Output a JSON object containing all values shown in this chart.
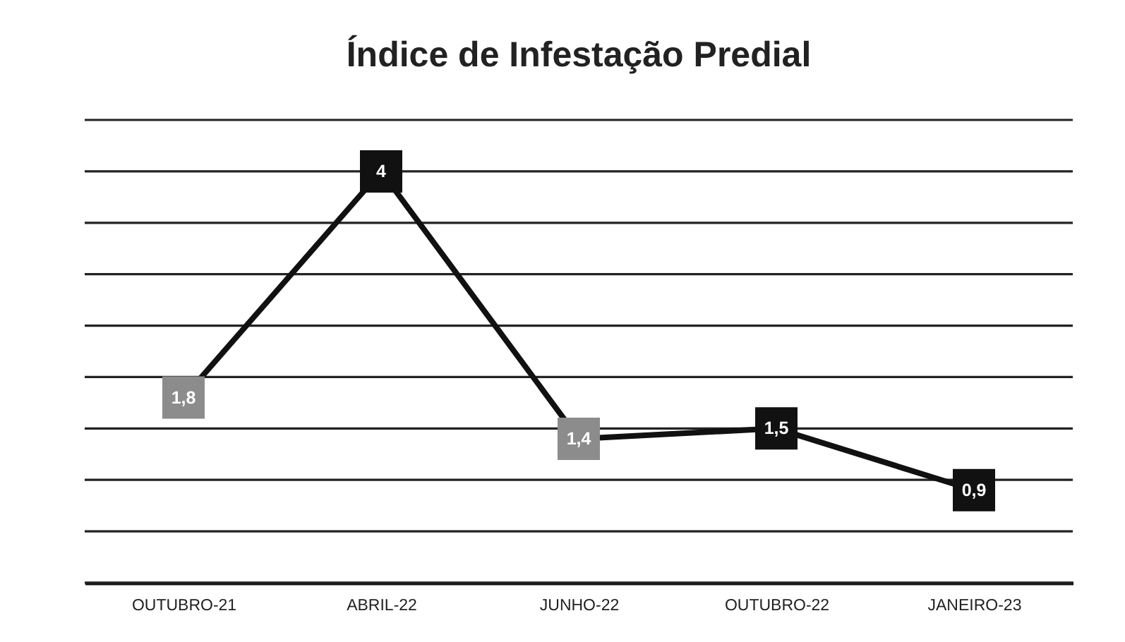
{
  "chart_data": {
    "type": "line",
    "title": "Índice de Infestação Predial",
    "categories": [
      "OUTUBRO-21",
      "ABRIL-22",
      "JUNHO-22",
      "OUTUBRO-22",
      "JANEIRO-23"
    ],
    "series": [
      {
        "color": "#111111",
        "values": [
          1.8,
          4,
          1.4,
          1.5,
          0.9
        ],
        "colors": [
          "#8c8c8c",
          "#111111",
          "#8c8c8c",
          "#111111",
          "#111111"
        ],
        "value_labels": [
          "1,8",
          "4",
          "1,4",
          "1,5",
          "0,9"
        ]
      }
    ],
    "ylim": [
      0,
      4.5
    ],
    "yticks": [
      {
        "value": 0,
        "label": null
      },
      {
        "value": 0.5,
        "label": null
      },
      {
        "value": 1,
        "label": null
      },
      {
        "value": 1.5,
        "label": null
      },
      {
        "value": 2,
        "label": null
      },
      {
        "value": 2.5,
        "label": null
      },
      {
        "value": 3,
        "label": null
      },
      {
        "value": 3.5,
        "label": null
      },
      {
        "value": 4,
        "label": null
      },
      {
        "value": 4.5,
        "label": null
      }
    ],
    "grid": "y",
    "tick_labels": "x",
    "marker": "square"
  }
}
